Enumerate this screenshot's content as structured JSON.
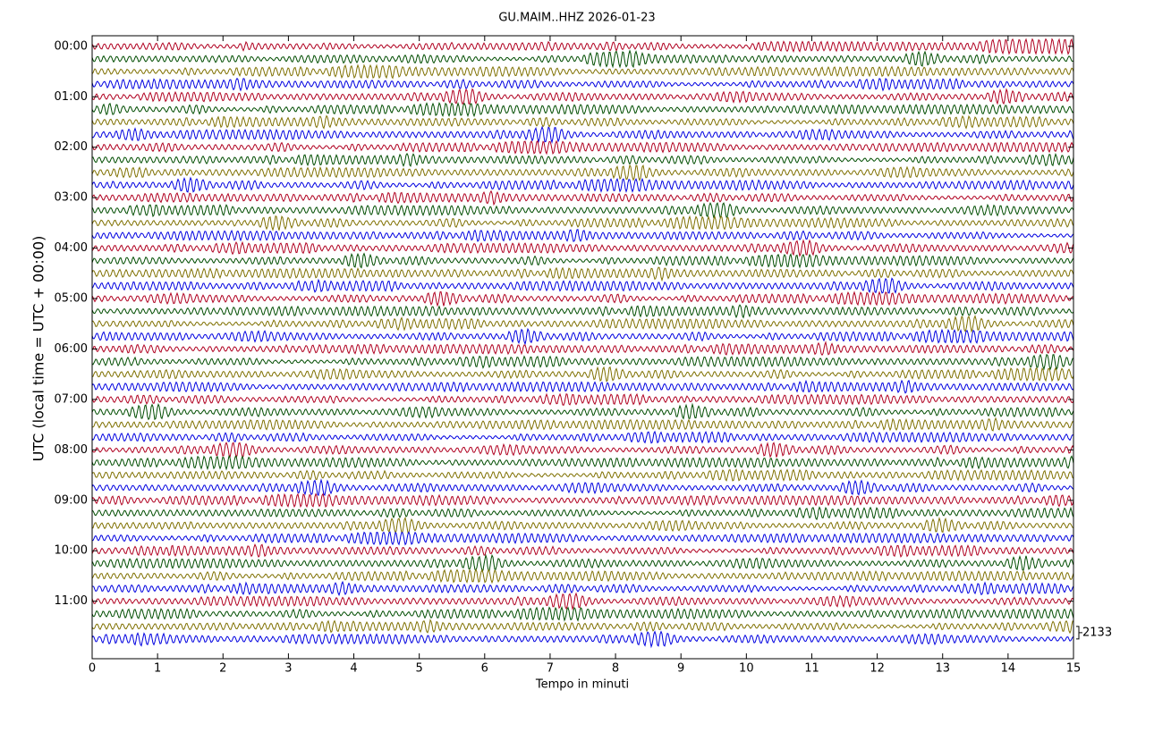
{
  "chart_data": {
    "type": "helicorder",
    "title": "GU.MAIM..HHZ 2026-01-23",
    "xlabel": "Tempo in minuti",
    "ylabel": "UTC (local time = UTC + 00:00)",
    "xlim": [
      0,
      15
    ],
    "xticks": [
      0,
      1,
      2,
      3,
      4,
      5,
      6,
      7,
      8,
      9,
      10,
      11,
      12,
      13,
      14,
      15
    ],
    "ylim": [
      -0.21,
      12.14
    ],
    "yticks": [
      {
        "value": 0,
        "label": "00:00"
      },
      {
        "value": 1,
        "label": "01:00"
      },
      {
        "value": 2,
        "label": "02:00"
      },
      {
        "value": 3,
        "label": "03:00"
      },
      {
        "value": 4,
        "label": "04:00"
      },
      {
        "value": 5,
        "label": "05:00"
      },
      {
        "value": 6,
        "label": "06:00"
      },
      {
        "value": 7,
        "label": "07:00"
      },
      {
        "value": 8,
        "label": "08:00"
      },
      {
        "value": 9,
        "label": "09:00"
      },
      {
        "value": 10,
        "label": "10:00"
      },
      {
        "value": 11,
        "label": "11:00"
      }
    ],
    "rows_per_hour": 4,
    "colors": [
      "#b00020",
      "#004d00",
      "#7f7000",
      "#0000e0"
    ],
    "scale": 2133
  }
}
